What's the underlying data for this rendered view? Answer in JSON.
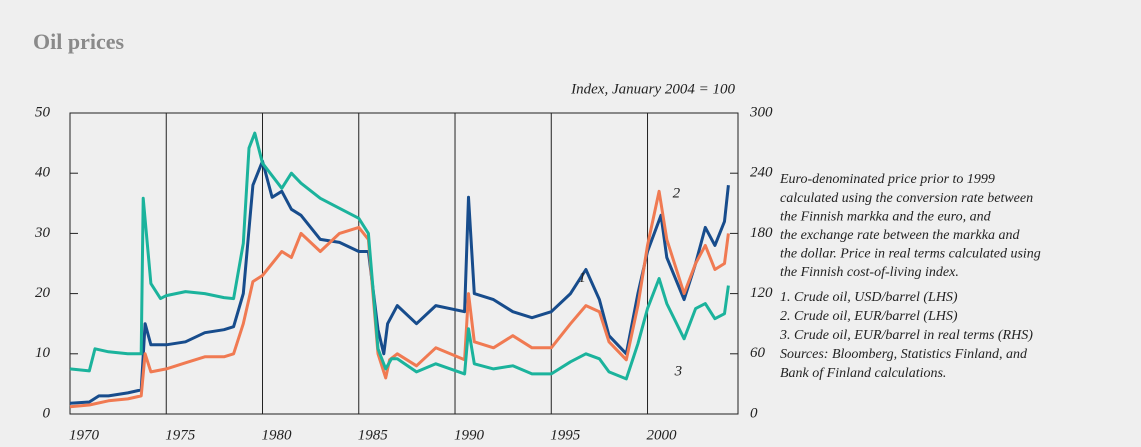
{
  "chart_data": {
    "type": "line",
    "title": "Oil prices",
    "y2_label": "Index, January 2004 = 100",
    "xlim": [
      1970,
      2004.7
    ],
    "xticks": [
      1970,
      1975,
      1980,
      1985,
      1990,
      1995,
      2000
    ],
    "ylim": [
      0,
      50
    ],
    "yticks": [
      0,
      10,
      20,
      30,
      40,
      50
    ],
    "y2lim": [
      0,
      300
    ],
    "y2ticks": [
      0,
      60,
      120,
      180,
      240,
      300
    ],
    "grid": "x",
    "series": [
      {
        "name": "1. Crude oil, USD/barrel (LHS)",
        "color": "#174c8c",
        "x": [
          1970,
          1971,
          1971.5,
          1972,
          1973,
          1973.7,
          1973.9,
          1974.2,
          1975,
          1976,
          1977,
          1978,
          1978.5,
          1979,
          1979.5,
          1980,
          1980.5,
          1981,
          1981.5,
          1982,
          1983,
          1984,
          1985,
          1985.5,
          1986,
          1986.3,
          1986.5,
          1987,
          1988,
          1989,
          1990.5,
          1990.7,
          1991,
          1992,
          1993,
          1994,
          1995,
          1996,
          1996.8,
          1997.5,
          1998,
          1998.9,
          1999.5,
          2000,
          2000.7,
          2001,
          2001.9,
          2002.5,
          2003,
          2003.5,
          2004,
          2004.2
        ],
        "values": [
          1.8,
          2.0,
          3.0,
          3.0,
          3.5,
          4.0,
          15,
          11.5,
          11.5,
          12,
          13.5,
          14,
          14.5,
          20,
          38,
          42,
          36,
          37,
          34,
          33,
          29,
          28.5,
          27,
          27,
          14,
          10,
          15,
          18,
          15,
          18,
          17,
          36,
          20,
          19,
          17,
          16,
          17,
          20,
          24,
          19,
          13,
          10,
          20,
          27,
          33,
          26,
          19,
          25,
          31,
          28,
          32,
          38
        ]
      },
      {
        "name": "2. Crude oil, EUR/barrel (LHS)",
        "color": "#f07a52",
        "x": [
          1970,
          1971,
          1972,
          1973,
          1973.7,
          1973.9,
          1974.2,
          1975,
          1976,
          1977,
          1978,
          1978.5,
          1979,
          1979.5,
          1980,
          1981,
          1981.5,
          1982,
          1983,
          1984,
          1985,
          1985.5,
          1986,
          1986.4,
          1986.6,
          1987,
          1988,
          1989,
          1990.5,
          1990.7,
          1991,
          1992,
          1993,
          1994,
          1995,
          1996,
          1996.8,
          1997.5,
          1998,
          1998.9,
          1999.5,
          2000,
          2000.6,
          2001,
          2001.9,
          2002.5,
          2003,
          2003.5,
          2004,
          2004.2
        ],
        "values": [
          1.2,
          1.5,
          2.2,
          2.5,
          3,
          10,
          7,
          7.5,
          8.5,
          9.5,
          9.5,
          10,
          15,
          22,
          23,
          27,
          26,
          30,
          27,
          30,
          31,
          29,
          10,
          6,
          9,
          10,
          8,
          11,
          9,
          20,
          12,
          11,
          13,
          11,
          11,
          15,
          18,
          17,
          12,
          9,
          18,
          28,
          37,
          29,
          20,
          25,
          28,
          24,
          25,
          30
        ]
      },
      {
        "name": "3. Crude oil, EUR/barrel in real terms (RHS)",
        "color": "#1bb39c",
        "axis": "y2",
        "x": [
          1970,
          1971,
          1971.3,
          1972,
          1973,
          1973.7,
          1973.8,
          1974.2,
          1974.7,
          1975,
          1976,
          1977,
          1978,
          1978.5,
          1979,
          1979.3,
          1979.6,
          1980,
          1981,
          1981.5,
          1982,
          1983,
          1984,
          1985,
          1985.5,
          1986,
          1986.4,
          1986.7,
          1987,
          1988,
          1989,
          1990.5,
          1990.7,
          1991,
          1992,
          1993,
          1994,
          1995,
          1996,
          1996.8,
          1997.5,
          1998,
          1998.9,
          1999.5,
          2000,
          2000.6,
          2001,
          2001.9,
          2002.5,
          2003,
          2003.5,
          2004,
          2004.2
        ],
        "values": [
          45,
          43,
          65,
          62,
          60,
          60,
          215,
          130,
          115,
          118,
          122,
          120,
          116,
          115,
          170,
          265,
          280,
          250,
          225,
          240,
          230,
          215,
          205,
          195,
          180,
          65,
          45,
          55,
          55,
          42,
          50,
          40,
          85,
          50,
          45,
          48,
          40,
          40,
          52,
          60,
          55,
          42,
          35,
          70,
          105,
          135,
          110,
          75,
          105,
          110,
          95,
          100,
          128
        ]
      }
    ],
    "annotations": [
      {
        "text": "1",
        "x": 1996.6,
        "y": 22.5
      },
      {
        "text": "2",
        "x": 2001.5,
        "y": 36.5
      },
      {
        "text": "3",
        "x": 2001.6,
        "y": 7
      }
    ],
    "note": [
      "Euro-denominated price prior to 1999",
      "calculated using the conversion rate between",
      "the Finnish markka and the euro, and",
      "the exchange rate between the markka and",
      "the dollar. Price in real terms calculated using",
      "the Finnish cost-of-living index."
    ],
    "source": [
      "Sources: Bloomberg, Statistics Finland, and",
      "Bank of Finland calculations."
    ]
  }
}
